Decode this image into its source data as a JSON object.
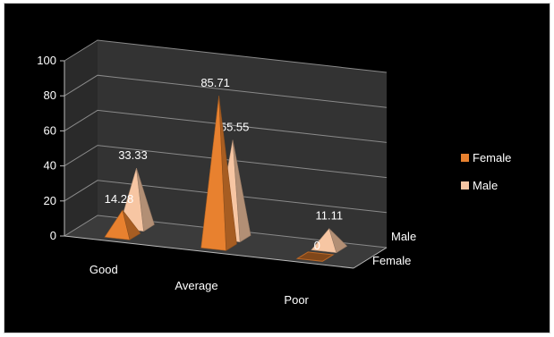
{
  "chart_data": {
    "type": "bar",
    "subtype": "3d-pyramid",
    "categories": [
      "Good",
      "Average",
      "Poor"
    ],
    "series_axis": [
      "Male",
      "Female"
    ],
    "series": [
      {
        "name": "Female",
        "values": [
          14.28,
          85.71,
          0
        ],
        "color": "#e8812f"
      },
      {
        "name": "Male",
        "values": [
          33.33,
          55.55,
          11.11
        ],
        "color": "#f7c6a3"
      }
    ],
    "ylim": [
      0,
      100
    ],
    "yticks": [
      0,
      20,
      40,
      60,
      80,
      100
    ],
    "grid": true,
    "legend_position": "right",
    "background": "#000000"
  }
}
